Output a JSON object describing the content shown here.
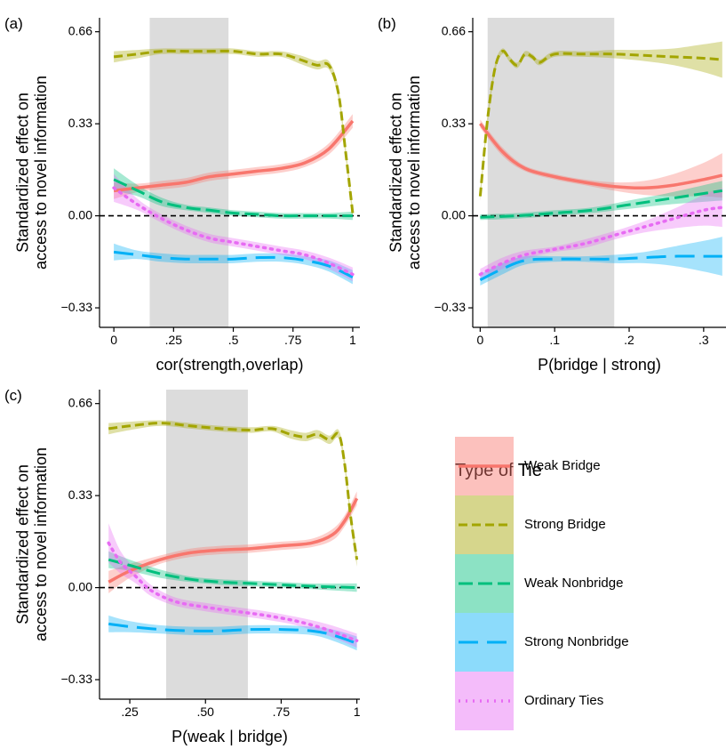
{
  "series_styles": [
    {
      "key": "weak_bridge",
      "color": "#F8766D",
      "dash": "",
      "width": 3.5
    },
    {
      "key": "strong_bridge",
      "color": "#A3A500",
      "dash": "10,5",
      "width": 3
    },
    {
      "key": "weak_nonbridge",
      "color": "#00BF7D",
      "dash": "16,6",
      "width": 3
    },
    {
      "key": "strong_nonbridge",
      "color": "#00B0F6",
      "dash": "22,10",
      "width": 3
    },
    {
      "key": "ordinary",
      "color": "#E76BF3",
      "dash": "2,6",
      "width": 3.5
    }
  ],
  "legend": {
    "title": "Type of Tie",
    "items": [
      "Weak Bridge",
      "Strong Bridge",
      "Weak Nonbridge",
      "Strong Nonbridge",
      "Ordinary Ties"
    ]
  },
  "chart_data": [
    {
      "panel": "(a)",
      "type": "line",
      "ylabel": [
        "Standardized effect on",
        "access to novel information"
      ],
      "xlabel": "cor(strength,overlap)",
      "xlim": [
        -0.06,
        1.03
      ],
      "ylim": [
        -0.4,
        0.71
      ],
      "xticks": [
        0,
        0.25,
        0.5,
        0.75,
        1
      ],
      "xticklabels": [
        "0",
        ".25",
        ".5",
        ".75",
        "1"
      ],
      "yticks": [
        -0.33,
        0,
        0.33,
        0.66
      ],
      "yticklabels": [
        "−0.33",
        "0.00",
        "0.33",
        "0.66"
      ],
      "shaded_region": [
        0.15,
        0.48
      ],
      "series": [
        {
          "name": "Weak Bridge",
          "x": [
            0,
            0.1,
            0.2,
            0.3,
            0.4,
            0.5,
            0.6,
            0.7,
            0.8,
            0.9,
            1.0
          ],
          "y": [
            0.09,
            0.1,
            0.11,
            0.12,
            0.14,
            0.15,
            0.16,
            0.17,
            0.19,
            0.24,
            0.34
          ],
          "band": [
            0.03,
            0.015,
            0.015,
            0.015,
            0.015,
            0.015,
            0.015,
            0.015,
            0.015,
            0.02,
            0.025
          ]
        },
        {
          "name": "Strong Bridge",
          "x": [
            0,
            0.1,
            0.2,
            0.3,
            0.4,
            0.5,
            0.6,
            0.7,
            0.78,
            0.85,
            0.9,
            0.94,
            0.97,
            1.0
          ],
          "y": [
            0.57,
            0.58,
            0.59,
            0.59,
            0.59,
            0.59,
            0.58,
            0.58,
            0.56,
            0.54,
            0.54,
            0.44,
            0.23,
            0.01
          ],
          "band": [
            0.02,
            0.015,
            0.01,
            0.01,
            0.01,
            0.01,
            0.01,
            0.01,
            0.015,
            0.015,
            0.015,
            0.02,
            0.02,
            0.02
          ]
        },
        {
          "name": "Weak Nonbridge",
          "x": [
            0,
            0.1,
            0.2,
            0.3,
            0.4,
            0.5,
            0.6,
            0.7,
            0.8,
            0.9,
            1.0
          ],
          "y": [
            0.13,
            0.09,
            0.05,
            0.03,
            0.02,
            0.01,
            0.005,
            0.0,
            0.0,
            0.0,
            0.0
          ],
          "band": [
            0.04,
            0.02,
            0.015,
            0.01,
            0.01,
            0.01,
            0.01,
            0.01,
            0.01,
            0.01,
            0.015
          ]
        },
        {
          "name": "Strong Nonbridge",
          "x": [
            0,
            0.1,
            0.2,
            0.3,
            0.4,
            0.5,
            0.6,
            0.7,
            0.8,
            0.9,
            1.0
          ],
          "y": [
            -0.13,
            -0.14,
            -0.15,
            -0.155,
            -0.155,
            -0.155,
            -0.15,
            -0.15,
            -0.16,
            -0.18,
            -0.22
          ],
          "band": [
            0.03,
            0.015,
            0.015,
            0.015,
            0.015,
            0.015,
            0.015,
            0.015,
            0.015,
            0.02,
            0.025
          ]
        },
        {
          "name": "Ordinary Ties",
          "x": [
            0,
            0.1,
            0.2,
            0.3,
            0.4,
            0.5,
            0.6,
            0.7,
            0.8,
            0.9,
            1.0
          ],
          "y": [
            0.1,
            0.04,
            -0.01,
            -0.05,
            -0.08,
            -0.095,
            -0.11,
            -0.125,
            -0.14,
            -0.17,
            -0.21
          ],
          "band": [
            0.05,
            0.02,
            0.015,
            0.015,
            0.015,
            0.015,
            0.015,
            0.015,
            0.015,
            0.02,
            0.025
          ]
        }
      ]
    },
    {
      "panel": "(b)",
      "type": "line",
      "ylabel": [
        "Standardized effect on",
        "access to novel information"
      ],
      "xlabel": "P(bridge | strong)",
      "xlim": [
        -0.01,
        0.33
      ],
      "ylim": [
        -0.4,
        0.71
      ],
      "xticks": [
        0,
        0.1,
        0.2,
        0.3
      ],
      "xticklabels": [
        "0",
        ".1",
        ".2",
        ".3"
      ],
      "yticks": [
        -0.33,
        0,
        0.33,
        0.66
      ],
      "yticklabels": [
        "−0.33",
        "0.00",
        "0.33",
        "0.66"
      ],
      "shaded_region": [
        0.01,
        0.18
      ],
      "series": [
        {
          "name": "Weak Bridge",
          "x": [
            0,
            0.03,
            0.06,
            0.1,
            0.14,
            0.18,
            0.22,
            0.26,
            0.3,
            0.325
          ],
          "y": [
            0.33,
            0.23,
            0.17,
            0.14,
            0.12,
            0.105,
            0.1,
            0.11,
            0.13,
            0.145
          ],
          "band": [
            0.015,
            0.015,
            0.01,
            0.01,
            0.01,
            0.015,
            0.025,
            0.04,
            0.06,
            0.08
          ]
        },
        {
          "name": "Strong Bridge",
          "x": [
            0,
            0.01,
            0.02,
            0.03,
            0.04,
            0.05,
            0.06,
            0.07,
            0.08,
            0.1,
            0.14,
            0.18,
            0.22,
            0.26,
            0.3,
            0.325
          ],
          "y": [
            0.07,
            0.35,
            0.53,
            0.59,
            0.56,
            0.54,
            0.58,
            0.57,
            0.55,
            0.58,
            0.58,
            0.58,
            0.575,
            0.57,
            0.565,
            0.56
          ],
          "band": [
            0.02,
            0.02,
            0.015,
            0.01,
            0.01,
            0.01,
            0.01,
            0.01,
            0.01,
            0.01,
            0.01,
            0.015,
            0.02,
            0.03,
            0.05,
            0.065
          ]
        },
        {
          "name": "Weak Nonbridge",
          "x": [
            0,
            0.05,
            0.1,
            0.15,
            0.2,
            0.25,
            0.3,
            0.325
          ],
          "y": [
            -0.005,
            0.0,
            0.01,
            0.02,
            0.04,
            0.06,
            0.08,
            0.09
          ],
          "band": [
            0.01,
            0.01,
            0.01,
            0.01,
            0.015,
            0.02,
            0.03,
            0.035
          ]
        },
        {
          "name": "Strong Nonbridge",
          "x": [
            0,
            0.03,
            0.06,
            0.1,
            0.14,
            0.18,
            0.22,
            0.26,
            0.3,
            0.325
          ],
          "y": [
            -0.23,
            -0.19,
            -0.16,
            -0.155,
            -0.155,
            -0.155,
            -0.15,
            -0.145,
            -0.145,
            -0.145
          ],
          "band": [
            0.02,
            0.02,
            0.015,
            0.01,
            0.01,
            0.015,
            0.02,
            0.035,
            0.055,
            0.07
          ]
        },
        {
          "name": "Ordinary Ties",
          "x": [
            0,
            0.03,
            0.06,
            0.1,
            0.14,
            0.18,
            0.22,
            0.26,
            0.3,
            0.325
          ],
          "y": [
            -0.21,
            -0.17,
            -0.14,
            -0.12,
            -0.1,
            -0.07,
            -0.04,
            -0.01,
            0.02,
            0.03
          ],
          "band": [
            0.02,
            0.02,
            0.015,
            0.01,
            0.015,
            0.015,
            0.02,
            0.035,
            0.055,
            0.07
          ]
        }
      ]
    },
    {
      "panel": "(c)",
      "type": "line",
      "ylabel": [
        "Standardized effect on",
        "access to novel information"
      ],
      "xlabel": "P(weak | bridge)",
      "xlim": [
        0.15,
        1.01
      ],
      "ylim": [
        -0.4,
        0.71
      ],
      "xticks": [
        0.25,
        0.5,
        0.75,
        1
      ],
      "xticklabels": [
        ".25",
        ".50",
        ".75",
        "1"
      ],
      "yticks": [
        -0.33,
        0,
        0.33,
        0.66
      ],
      "yticklabels": [
        "−0.33",
        "0.00",
        "0.33",
        "0.66"
      ],
      "shaded_region": [
        0.37,
        0.64
      ],
      "series": [
        {
          "name": "Weak Bridge",
          "x": [
            0.18,
            0.25,
            0.35,
            0.45,
            0.55,
            0.65,
            0.75,
            0.85,
            0.92,
            0.96,
            1.0
          ],
          "y": [
            0.02,
            0.06,
            0.1,
            0.125,
            0.135,
            0.14,
            0.15,
            0.16,
            0.19,
            0.24,
            0.32
          ],
          "band": [
            0.04,
            0.025,
            0.015,
            0.015,
            0.015,
            0.015,
            0.015,
            0.015,
            0.02,
            0.02,
            0.025
          ]
        },
        {
          "name": "Strong Bridge",
          "x": [
            0.18,
            0.25,
            0.35,
            0.45,
            0.55,
            0.65,
            0.72,
            0.78,
            0.83,
            0.87,
            0.91,
            0.94,
            0.96,
            0.98,
            1.0
          ],
          "y": [
            0.57,
            0.58,
            0.59,
            0.58,
            0.57,
            0.565,
            0.57,
            0.55,
            0.54,
            0.55,
            0.53,
            0.55,
            0.44,
            0.25,
            0.1
          ],
          "band": [
            0.02,
            0.015,
            0.01,
            0.01,
            0.01,
            0.01,
            0.01,
            0.015,
            0.015,
            0.015,
            0.015,
            0.015,
            0.02,
            0.02,
            0.025
          ]
        },
        {
          "name": "Weak Nonbridge",
          "x": [
            0.18,
            0.25,
            0.35,
            0.45,
            0.55,
            0.65,
            0.75,
            0.85,
            1.0
          ],
          "y": [
            0.1,
            0.08,
            0.05,
            0.03,
            0.02,
            0.015,
            0.01,
            0.005,
            0.0
          ],
          "band": [
            0.03,
            0.02,
            0.015,
            0.01,
            0.01,
            0.01,
            0.01,
            0.01,
            0.015
          ]
        },
        {
          "name": "Strong Nonbridge",
          "x": [
            0.18,
            0.25,
            0.35,
            0.45,
            0.55,
            0.65,
            0.75,
            0.85,
            0.92,
            1.0
          ],
          "y": [
            -0.13,
            -0.14,
            -0.15,
            -0.155,
            -0.155,
            -0.15,
            -0.15,
            -0.155,
            -0.17,
            -0.2
          ],
          "band": [
            0.03,
            0.02,
            0.015,
            0.015,
            0.015,
            0.015,
            0.015,
            0.015,
            0.02,
            0.025
          ]
        },
        {
          "name": "Ordinary Ties",
          "x": [
            0.18,
            0.22,
            0.27,
            0.32,
            0.4,
            0.5,
            0.6,
            0.7,
            0.8,
            0.9,
            1.0
          ],
          "y": [
            0.16,
            0.09,
            0.04,
            -0.01,
            -0.05,
            -0.07,
            -0.085,
            -0.1,
            -0.12,
            -0.15,
            -0.19
          ],
          "band": [
            0.07,
            0.04,
            0.025,
            0.02,
            0.015,
            0.015,
            0.015,
            0.015,
            0.015,
            0.02,
            0.025
          ]
        }
      ]
    }
  ]
}
